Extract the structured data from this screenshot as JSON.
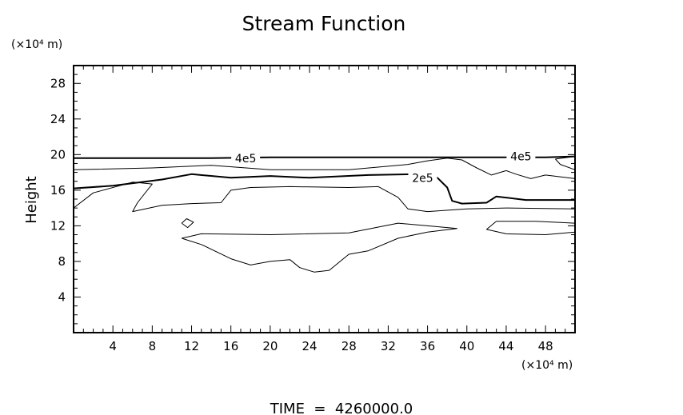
{
  "chart_data": {
    "type": "contour",
    "title": "Stream Function",
    "xlabel": "",
    "ylabel": "Height",
    "x_unit": "(×10⁴ m)",
    "y_unit": "(×10⁴ m)",
    "xlim": [
      0,
      51
    ],
    "ylim": [
      0,
      30
    ],
    "xticks": [
      4,
      8,
      12,
      16,
      20,
      24,
      28,
      32,
      36,
      40,
      44,
      48
    ],
    "yticks": [
      4,
      8,
      12,
      16,
      20,
      24,
      28
    ],
    "footer": "TIME  =  4260000.0",
    "contour_labels": [
      {
        "text": "4e5",
        "x": 17.5,
        "y": 19.6
      },
      {
        "text": "2e5",
        "x": 35.5,
        "y": 17.4
      },
      {
        "text": "4e5",
        "x": 45.5,
        "y": 19.8
      }
    ],
    "contours": [
      {
        "level": "4e5",
        "heavy": true,
        "points": [
          [
            0,
            19.6
          ],
          [
            14,
            19.6
          ],
          [
            20,
            19.7
          ],
          [
            34,
            19.7
          ],
          [
            44,
            19.7
          ],
          [
            48,
            19.7
          ],
          [
            51,
            19.8
          ]
        ]
      },
      {
        "level": "",
        "heavy": false,
        "points": [
          [
            0,
            18.3
          ],
          [
            8,
            18.5
          ],
          [
            14,
            18.8
          ],
          [
            20,
            18.3
          ],
          [
            28,
            18.3
          ],
          [
            34,
            18.9
          ],
          [
            36,
            19.3
          ],
          [
            38,
            19.6
          ],
          [
            39.5,
            19.4
          ],
          [
            41,
            18.5
          ],
          [
            42.5,
            17.7
          ],
          [
            44,
            18.2
          ],
          [
            45,
            17.8
          ],
          [
            46.5,
            17.3
          ],
          [
            48,
            17.7
          ],
          [
            51,
            17.3
          ]
        ]
      },
      {
        "level": "2e5",
        "heavy": true,
        "points": [
          [
            0,
            16.2
          ],
          [
            4,
            16.5
          ],
          [
            9,
            17.2
          ],
          [
            12,
            17.8
          ],
          [
            16,
            17.4
          ],
          [
            20,
            17.6
          ],
          [
            24,
            17.4
          ],
          [
            30,
            17.7
          ],
          [
            35,
            17.8
          ],
          [
            37,
            17.4
          ],
          [
            38,
            16.3
          ],
          [
            38.5,
            14.8
          ],
          [
            39.5,
            14.5
          ],
          [
            42,
            14.6
          ],
          [
            43,
            15.3
          ],
          [
            46,
            14.9
          ],
          [
            51,
            14.9
          ]
        ]
      },
      {
        "level": "",
        "heavy": false,
        "points": [
          [
            0,
            14.0
          ],
          [
            2,
            15.7
          ],
          [
            6,
            16.9
          ],
          [
            8,
            16.7
          ],
          [
            6.5,
            14.6
          ],
          [
            6,
            13.6
          ],
          [
            9,
            14.3
          ],
          [
            12,
            14.5
          ],
          [
            15,
            14.6
          ],
          [
            16,
            16.0
          ],
          [
            18,
            16.3
          ],
          [
            22,
            16.4
          ],
          [
            28,
            16.3
          ],
          [
            31,
            16.4
          ],
          [
            33,
            15.2
          ],
          [
            34,
            13.9
          ],
          [
            36,
            13.6
          ],
          [
            40,
            13.9
          ],
          [
            44,
            14.0
          ],
          [
            51,
            13.9
          ]
        ]
      },
      {
        "level": "",
        "heavy": false,
        "points": [
          [
            11,
            10.6
          ],
          [
            13,
            11.1
          ],
          [
            20,
            11.0
          ],
          [
            28,
            11.2
          ],
          [
            33,
            12.3
          ],
          [
            36,
            12.0
          ],
          [
            39,
            11.7
          ],
          [
            36,
            11.3
          ],
          [
            33,
            10.6
          ],
          [
            30,
            9.2
          ],
          [
            28,
            8.8
          ],
          [
            26,
            7.0
          ],
          [
            24.5,
            6.8
          ],
          [
            23,
            7.3
          ],
          [
            22,
            8.2
          ],
          [
            20,
            8.0
          ],
          [
            18,
            7.6
          ],
          [
            16,
            8.3
          ],
          [
            13,
            9.9
          ],
          [
            11,
            10.6
          ]
        ]
      },
      {
        "level": "",
        "heavy": false,
        "points": [
          [
            43,
            12.5
          ],
          [
            47,
            12.5
          ],
          [
            51,
            12.3
          ],
          [
            51,
            11.3
          ],
          [
            48,
            11.0
          ],
          [
            44,
            11.1
          ],
          [
            42,
            11.6
          ],
          [
            43,
            12.5
          ]
        ]
      },
      {
        "level": "",
        "heavy": false,
        "points": [
          [
            11,
            12.3
          ],
          [
            11.5,
            12.8
          ],
          [
            12.2,
            12.4
          ],
          [
            11.6,
            11.8
          ],
          [
            11,
            12.3
          ]
        ]
      },
      {
        "level": "",
        "heavy": false,
        "points": [
          [
            49,
            19.5
          ],
          [
            51,
            19.8
          ],
          [
            51,
            18.3
          ],
          [
            49.5,
            18.9
          ],
          [
            49,
            19.5
          ]
        ]
      }
    ]
  }
}
